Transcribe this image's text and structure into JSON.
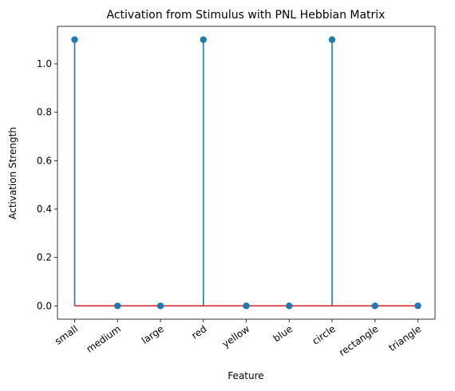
{
  "chart_data": {
    "type": "stem",
    "title": "Activation from Stimulus with PNL Hebbian Matrix",
    "xlabel": "Feature",
    "ylabel": "Activation Strength",
    "categories": [
      "small",
      "medium",
      "large",
      "red",
      "yellow",
      "blue",
      "circle",
      "rectangle",
      "triangle"
    ],
    "values": [
      1.1,
      0,
      0,
      1.1,
      0,
      0,
      1.1,
      0,
      0
    ],
    "ylim": [
      -0.055,
      1.155
    ],
    "yticks": [
      "0.0",
      "0.2",
      "0.4",
      "0.6",
      "0.8",
      "1.0"
    ],
    "grid": false,
    "colors": {
      "stem": "#1f77b4",
      "marker": "#1f77b4",
      "baseline": "#d62728"
    }
  }
}
